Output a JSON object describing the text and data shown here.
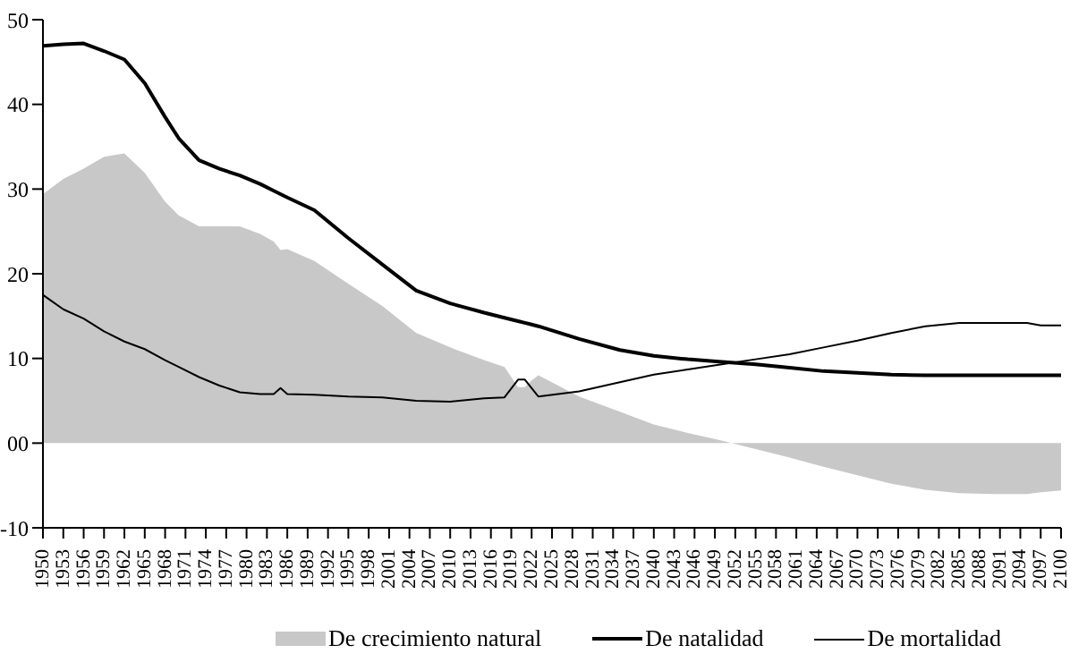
{
  "chart_data": {
    "type": "line",
    "x": [
      1950,
      1953,
      1956,
      1959,
      1962,
      1965,
      1968,
      1970,
      1973,
      1976,
      1979,
      1982,
      1984,
      1985,
      1986,
      1990,
      1995,
      2000,
      2005,
      2010,
      2015,
      2018,
      2020,
      2021,
      2022,
      2023,
      2029,
      2035,
      2040,
      2045,
      2050,
      2055,
      2060,
      2065,
      2070,
      2075,
      2080,
      2085,
      2090,
      2095,
      2097,
      2100
    ],
    "series": [
      {
        "name": "De crecimiento natural",
        "type": "area",
        "color": "#c8c8c8",
        "values": [
          29.4,
          31.2,
          32.4,
          33.8,
          34.2,
          31.9,
          28.5,
          26.9,
          25.6,
          25.6,
          25.6,
          24.7,
          23.8,
          22.8,
          22.9,
          21.5,
          18.8,
          16.2,
          13,
          11.3,
          9.8,
          9,
          6.6,
          6.6,
          7.4,
          8,
          5.5,
          3.7,
          2.2,
          1.2,
          0.3,
          -0.7,
          -1.7,
          -2.8,
          -3.8,
          -4.8,
          -5.5,
          -5.9,
          -6,
          -6,
          -5.8,
          -5.6
        ]
      },
      {
        "name": "De natalidad",
        "color": "#000000",
        "values": [
          46.9,
          47.1,
          47.2,
          46.3,
          45.3,
          42.5,
          38.5,
          36,
          33.4,
          32.4,
          31.6,
          30.6,
          29.8,
          29.4,
          29,
          27.5,
          24.2,
          21.1,
          18,
          16.5,
          15.4,
          14.8,
          14.4,
          14.2,
          14,
          13.8,
          12.3,
          11,
          10.3,
          9.9,
          9.6,
          9.3,
          8.9,
          8.5,
          8.3,
          8.1,
          8,
          8,
          8,
          8,
          8,
          8
        ]
      },
      {
        "name": "De mortalidad",
        "color": "#000000",
        "values": [
          17.5,
          15.8,
          14.7,
          13.2,
          12,
          11.1,
          9.8,
          9,
          7.8,
          6.8,
          6,
          5.8,
          5.8,
          6.5,
          5.8,
          5.7,
          5.5,
          5.4,
          5,
          4.9,
          5.3,
          5.4,
          7.5,
          7.5,
          6.5,
          5.5,
          6.1,
          7.2,
          8.1,
          8.7,
          9.3,
          9.9,
          10.5,
          11.3,
          12.1,
          13,
          13.8,
          14.2,
          14.2,
          14.2,
          13.9,
          13.9
        ]
      }
    ],
    "xlim": [
      1950,
      2100
    ],
    "xticks": [
      1950,
      1953,
      1956,
      1959,
      1962,
      1965,
      1968,
      1971,
      1974,
      1977,
      1980,
      1983,
      1986,
      1989,
      1992,
      1995,
      1998,
      2001,
      2004,
      2007,
      2010,
      2013,
      2016,
      2019,
      2022,
      2025,
      2028,
      2031,
      2034,
      2037,
      2040,
      2043,
      2046,
      2049,
      2052,
      2055,
      2058,
      2061,
      2064,
      2067,
      2070,
      2073,
      2076,
      2079,
      2082,
      2085,
      2088,
      2091,
      2094,
      2097,
      2100
    ],
    "ylim": [
      -10,
      50
    ],
    "yticks": [
      -10,
      {
        "value": 0,
        "label": "00"
      },
      10,
      20,
      30,
      40,
      50
    ],
    "legend": "bottom",
    "marker": "none"
  }
}
